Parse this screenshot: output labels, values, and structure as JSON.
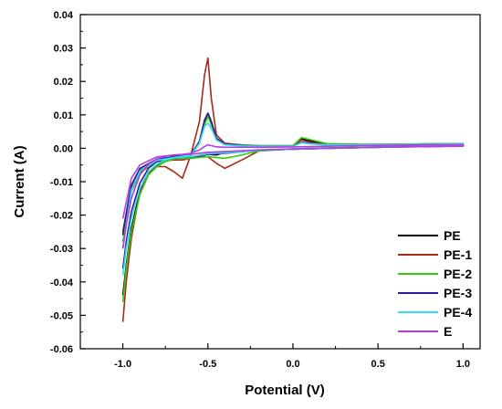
{
  "chart_data": {
    "type": "line",
    "title": "",
    "xlabel": "Potential (V)",
    "ylabel": "Current (A)",
    "xlim": [
      -1.25,
      1.1
    ],
    "ylim": [
      -0.06,
      0.04
    ],
    "xticks": [
      -1.0,
      -0.5,
      0.0,
      0.5,
      1.0
    ],
    "xtick_labels": [
      "-1.0",
      "-0.5",
      "0.0",
      "0.5",
      "1.0"
    ],
    "yticks": [
      -0.06,
      -0.05,
      -0.04,
      -0.03,
      -0.02,
      -0.01,
      0.0,
      0.01,
      0.02,
      0.03,
      0.04
    ],
    "ytick_labels": [
      "-0.06",
      "-0.05",
      "-0.04",
      "-0.03",
      "-0.02",
      "-0.01",
      "0.00",
      "0.01",
      "0.02",
      "0.03",
      "0.04"
    ],
    "grid": false,
    "legend_position": "bottom-right",
    "series": [
      {
        "name": "PE",
        "color": "#000000",
        "x": [
          -1.0,
          -0.98,
          -0.95,
          -0.9,
          -0.85,
          -0.8,
          -0.75,
          -0.7,
          -0.65,
          -0.6,
          -0.55,
          -0.52,
          -0.5,
          -0.48,
          -0.45,
          -0.4,
          -0.3,
          -0.2,
          0.0,
          0.05,
          0.1,
          0.2,
          0.4,
          0.6,
          0.8,
          1.0,
          1.0,
          0.8,
          0.6,
          0.4,
          0.2,
          0.0,
          -0.2,
          -0.4,
          -0.45,
          -0.5,
          -0.55,
          -0.6,
          -0.7,
          -0.8,
          -0.9,
          -0.95,
          -1.0
        ],
        "y": [
          -0.044,
          -0.035,
          -0.024,
          -0.013,
          -0.0075,
          -0.005,
          -0.0035,
          -0.0028,
          -0.0025,
          -0.002,
          0.002,
          0.008,
          0.0105,
          0.008,
          0.003,
          0.0012,
          0.0008,
          0.0006,
          0.0007,
          0.0028,
          0.0022,
          0.0012,
          0.001,
          0.001,
          0.0011,
          0.0012,
          0.0007,
          0.0005,
          0.0004,
          0.0002,
          0.0,
          -0.0003,
          -0.0006,
          -0.0012,
          -0.002,
          -0.0018,
          -0.0022,
          -0.003,
          -0.0028,
          -0.0035,
          -0.007,
          -0.012,
          -0.026
        ]
      },
      {
        "name": "PE-1",
        "color": "#a52a1e",
        "x": [
          -1.0,
          -0.98,
          -0.95,
          -0.9,
          -0.85,
          -0.8,
          -0.75,
          -0.7,
          -0.65,
          -0.6,
          -0.55,
          -0.52,
          -0.5,
          -0.48,
          -0.45,
          -0.4,
          -0.3,
          -0.2,
          0.0,
          0.05,
          0.1,
          0.2,
          0.4,
          0.6,
          0.8,
          1.0,
          1.0,
          0.8,
          0.6,
          0.4,
          0.2,
          0.0,
          -0.2,
          -0.3,
          -0.4,
          -0.45,
          -0.5,
          -0.55,
          -0.6,
          -0.65,
          -0.7,
          -0.8,
          -0.9,
          -0.95,
          -1.0
        ],
        "y": [
          -0.052,
          -0.04,
          -0.027,
          -0.013,
          -0.0075,
          -0.0055,
          -0.0055,
          -0.007,
          -0.009,
          -0.002,
          0.008,
          0.022,
          0.027,
          0.015,
          0.004,
          0.0015,
          0.001,
          0.0008,
          0.0008,
          0.0025,
          0.0018,
          0.0011,
          0.0011,
          0.0012,
          0.0013,
          0.0014,
          0.0009,
          0.0007,
          0.0005,
          0.0003,
          0.0001,
          -0.0002,
          -0.0008,
          -0.0035,
          -0.006,
          -0.0045,
          -0.0025,
          -0.0025,
          -0.003,
          -0.0035,
          -0.0035,
          -0.004,
          -0.0065,
          -0.012,
          -0.03
        ]
      },
      {
        "name": "PE-2",
        "color": "#33cc11",
        "x": [
          -1.0,
          -0.98,
          -0.95,
          -0.9,
          -0.85,
          -0.8,
          -0.75,
          -0.7,
          -0.65,
          -0.6,
          -0.55,
          -0.52,
          -0.5,
          -0.48,
          -0.45,
          -0.4,
          -0.3,
          -0.2,
          0.0,
          0.05,
          0.1,
          0.2,
          0.4,
          0.6,
          0.8,
          1.0,
          1.0,
          0.8,
          0.6,
          0.4,
          0.2,
          0.0,
          -0.2,
          -0.3,
          -0.4,
          -0.5,
          -0.6,
          -0.7,
          -0.8,
          -0.9,
          -0.95,
          -1.0
        ],
        "y": [
          -0.046,
          -0.036,
          -0.025,
          -0.014,
          -0.008,
          -0.0055,
          -0.004,
          -0.0032,
          -0.0028,
          -0.0022,
          0.0015,
          0.007,
          0.0095,
          0.007,
          0.0025,
          0.0012,
          0.0009,
          0.0007,
          0.0008,
          0.0032,
          0.0026,
          0.0014,
          0.0012,
          0.0012,
          0.0013,
          0.0014,
          0.0008,
          0.0006,
          0.0005,
          0.0003,
          0.0001,
          -0.0002,
          -0.0008,
          -0.002,
          -0.003,
          -0.0025,
          -0.003,
          -0.003,
          -0.0038,
          -0.0075,
          -0.013,
          -0.028
        ]
      },
      {
        "name": "PE-3",
        "color": "#2e1a9e",
        "x": [
          -1.0,
          -0.98,
          -0.95,
          -0.9,
          -0.85,
          -0.8,
          -0.75,
          -0.7,
          -0.65,
          -0.6,
          -0.55,
          -0.52,
          -0.5,
          -0.48,
          -0.45,
          -0.4,
          -0.3,
          -0.2,
          0.0,
          0.05,
          0.1,
          0.2,
          0.4,
          0.6,
          0.8,
          1.0,
          1.0,
          0.8,
          0.6,
          0.4,
          0.2,
          0.0,
          -0.2,
          -0.4,
          -0.5,
          -0.6,
          -0.7,
          -0.8,
          -0.9,
          -0.95,
          -1.0
        ],
        "y": [
          -0.036,
          -0.028,
          -0.019,
          -0.0105,
          -0.006,
          -0.004,
          -0.003,
          -0.0024,
          -0.0022,
          -0.0018,
          0.002,
          0.0085,
          0.0105,
          0.008,
          0.003,
          0.0012,
          0.0008,
          0.0006,
          0.0006,
          0.0018,
          0.0014,
          0.001,
          0.001,
          0.0011,
          0.0012,
          0.0013,
          0.0008,
          0.0006,
          0.0004,
          0.0002,
          0.0,
          -0.0003,
          -0.0006,
          -0.0015,
          -0.0018,
          -0.0026,
          -0.0026,
          -0.0032,
          -0.006,
          -0.011,
          -0.025
        ]
      },
      {
        "name": "PE-4",
        "color": "#33ddee",
        "x": [
          -1.0,
          -0.98,
          -0.95,
          -0.9,
          -0.85,
          -0.8,
          -0.75,
          -0.7,
          -0.65,
          -0.6,
          -0.55,
          -0.52,
          -0.5,
          -0.48,
          -0.45,
          -0.4,
          -0.3,
          -0.2,
          0.0,
          0.05,
          0.1,
          0.2,
          0.4,
          0.6,
          0.8,
          1.0,
          1.0,
          0.8,
          0.6,
          0.4,
          0.2,
          0.0,
          -0.2,
          -0.4,
          -0.5,
          -0.6,
          -0.7,
          -0.8,
          -0.9,
          -0.95,
          -1.0
        ],
        "y": [
          -0.038,
          -0.03,
          -0.021,
          -0.012,
          -0.007,
          -0.0048,
          -0.0035,
          -0.0028,
          -0.0024,
          -0.002,
          0.0015,
          0.0065,
          0.0075,
          0.006,
          0.0025,
          0.001,
          0.0007,
          0.0006,
          0.0006,
          0.0016,
          0.0013,
          0.001,
          0.001,
          0.0011,
          0.0012,
          0.0013,
          0.0008,
          0.0006,
          0.0004,
          0.0002,
          0.0,
          -0.0003,
          -0.0006,
          -0.0014,
          -0.0016,
          -0.0025,
          -0.0028,
          -0.0036,
          -0.0068,
          -0.0125,
          -0.03
        ]
      },
      {
        "name": "E",
        "color": "#b040e0",
        "x": [
          -1.0,
          -0.98,
          -0.95,
          -0.9,
          -0.85,
          -0.8,
          -0.75,
          -0.7,
          -0.65,
          -0.6,
          -0.55,
          -0.52,
          -0.5,
          -0.48,
          -0.45,
          -0.4,
          -0.3,
          -0.2,
          0.0,
          0.2,
          0.4,
          0.6,
          0.8,
          1.0,
          1.0,
          0.8,
          0.6,
          0.4,
          0.2,
          0.0,
          -0.2,
          -0.4,
          -0.5,
          -0.6,
          -0.7,
          -0.8,
          -0.9,
          -0.95,
          -1.0
        ],
        "y": [
          -0.03,
          -0.023,
          -0.015,
          -0.008,
          -0.0048,
          -0.0032,
          -0.0024,
          -0.002,
          -0.0018,
          -0.0015,
          -0.0005,
          0.0005,
          0.001,
          0.0008,
          0.0004,
          0.0003,
          0.0003,
          0.0003,
          0.0004,
          0.0006,
          0.0008,
          0.0009,
          0.001,
          0.0011,
          0.0006,
          0.0005,
          0.0004,
          0.0002,
          0.0,
          -0.0002,
          -0.0005,
          -0.001,
          -0.0012,
          -0.0018,
          -0.002,
          -0.0026,
          -0.005,
          -0.009,
          -0.021
        ]
      }
    ]
  }
}
